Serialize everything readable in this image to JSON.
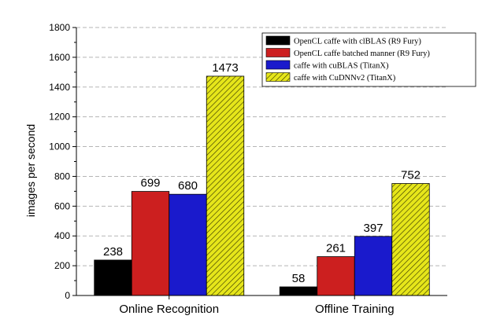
{
  "chart_data": {
    "type": "bar",
    "title": "",
    "xlabel": "",
    "ylabel": "images per second",
    "ylim": [
      0,
      1800
    ],
    "yticks": [
      0,
      200,
      400,
      600,
      800,
      1000,
      1200,
      1400,
      1600,
      1800
    ],
    "grid": true,
    "legend_position": "top-right",
    "categories": [
      "Online Recognition",
      "Offline Training"
    ],
    "series": [
      {
        "name": "OpenCL caffe with clBLAS (R9 Fury)",
        "values": [
          238,
          58
        ],
        "color": "#000000",
        "pattern": "solid"
      },
      {
        "name": "OpenCL caffe batched manner (R9 Fury)",
        "values": [
          699,
          261
        ],
        "color": "#cc1f1f",
        "pattern": "solid"
      },
      {
        "name": "caffe with cuBLAS (TitanX)",
        "values": [
          680,
          397
        ],
        "color": "#1a1acc",
        "pattern": "solid"
      },
      {
        "name": "caffe with CuDNNv2 (TitanX)",
        "values": [
          1473,
          752
        ],
        "color": "#e6e61a",
        "pattern": "hatched"
      }
    ]
  }
}
